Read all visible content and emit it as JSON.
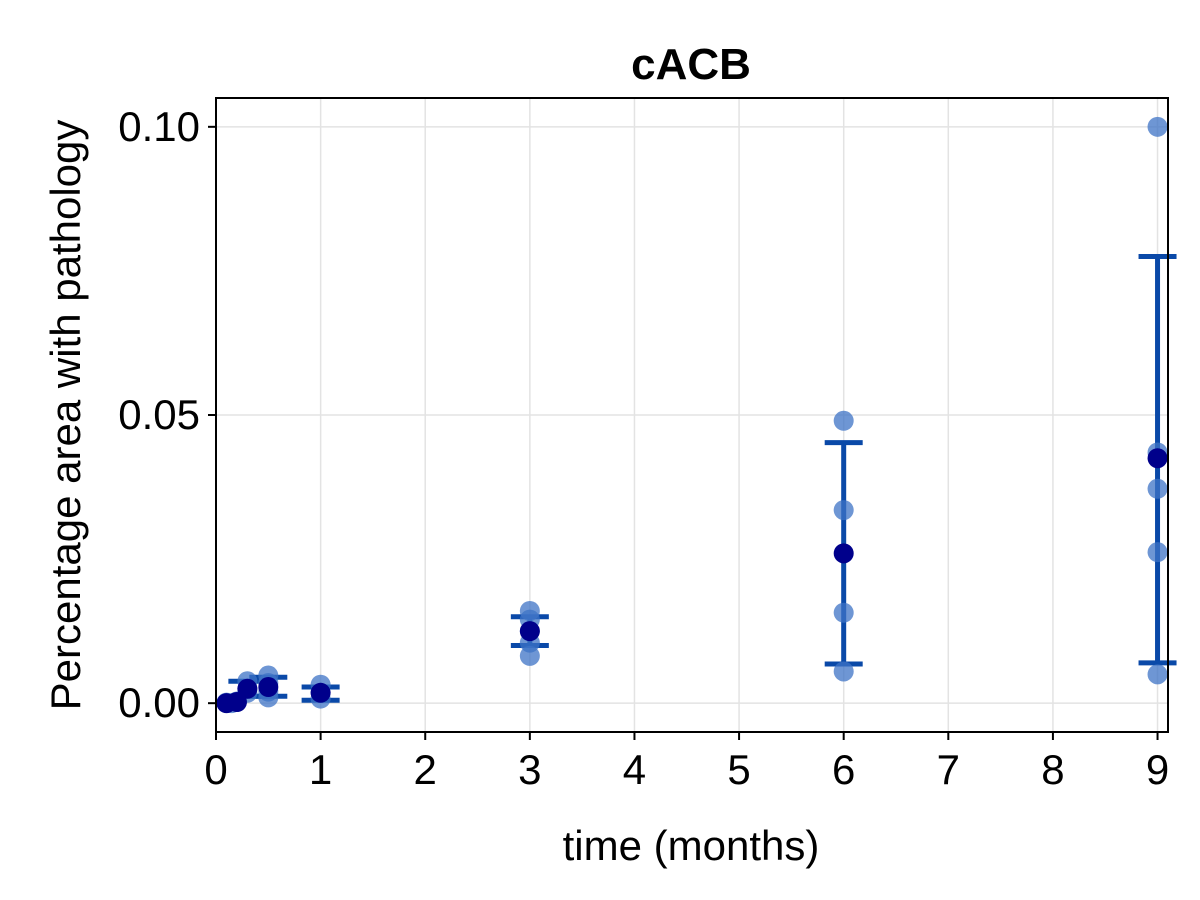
{
  "chart_data": {
    "type": "scatter",
    "title": "cACB",
    "xlabel": "time (months)",
    "ylabel": "Percentage area with pathology",
    "xlim": [
      0,
      9.1
    ],
    "ylim": [
      -0.005,
      0.105
    ],
    "x_ticks": [
      0,
      1,
      2,
      3,
      4,
      5,
      6,
      7,
      8,
      9
    ],
    "x_tick_labels": [
      "0",
      "1",
      "2",
      "3",
      "4",
      "5",
      "6",
      "7",
      "8",
      "9"
    ],
    "y_ticks": [
      0.0,
      0.05,
      0.1
    ],
    "y_tick_labels": [
      "0.00",
      "0.05",
      "0.10"
    ],
    "grid": true,
    "colors": {
      "points": "#3d73c6",
      "error_bars": "#0a49a8",
      "means": "#00008b",
      "grid": "#e3e3e3",
      "axis": "#000000"
    },
    "points": [
      {
        "x": 0.1,
        "y": 0.0
      },
      {
        "x": 0.1,
        "y": 0.0001
      },
      {
        "x": 0.15,
        "y": 0.0
      },
      {
        "x": 0.2,
        "y": 0.0002
      },
      {
        "x": 0.2,
        "y": 0.0003
      },
      {
        "x": 0.3,
        "y": 0.0018
      },
      {
        "x": 0.3,
        "y": 0.0025
      },
      {
        "x": 0.3,
        "y": 0.0038
      },
      {
        "x": 0.5,
        "y": 0.001
      },
      {
        "x": 0.5,
        "y": 0.002
      },
      {
        "x": 0.5,
        "y": 0.0035
      },
      {
        "x": 0.5,
        "y": 0.0048
      },
      {
        "x": 1.0,
        "y": 0.0008
      },
      {
        "x": 1.0,
        "y": 0.0018
      },
      {
        "x": 1.0,
        "y": 0.0032
      },
      {
        "x": 3.0,
        "y": 0.0082
      },
      {
        "x": 3.0,
        "y": 0.0105
      },
      {
        "x": 3.0,
        "y": 0.0125
      },
      {
        "x": 3.0,
        "y": 0.0145
      },
      {
        "x": 3.0,
        "y": 0.016
      },
      {
        "x": 6.0,
        "y": 0.0055
      },
      {
        "x": 6.0,
        "y": 0.0157
      },
      {
        "x": 6.0,
        "y": 0.0335
      },
      {
        "x": 6.0,
        "y": 0.049
      },
      {
        "x": 9.0,
        "y": 0.005
      },
      {
        "x": 9.0,
        "y": 0.0262
      },
      {
        "x": 9.0,
        "y": 0.0372
      },
      {
        "x": 9.0,
        "y": 0.0435
      },
      {
        "x": 9.0,
        "y": 0.1
      }
    ],
    "means": [
      {
        "x": 0.1,
        "y": 0.0
      },
      {
        "x": 0.2,
        "y": 0.0002
      },
      {
        "x": 0.3,
        "y": 0.0025
      },
      {
        "x": 0.5,
        "y": 0.0028
      },
      {
        "x": 1.0,
        "y": 0.0018
      },
      {
        "x": 3.0,
        "y": 0.0125
      },
      {
        "x": 6.0,
        "y": 0.026
      },
      {
        "x": 9.0,
        "y": 0.0425
      }
    ],
    "error_bars": [
      {
        "x": 0.3,
        "low": 0.0012,
        "high": 0.0038
      },
      {
        "x": 0.5,
        "low": 0.0012,
        "high": 0.0045
      },
      {
        "x": 1.0,
        "low": 0.0005,
        "high": 0.0028
      },
      {
        "x": 3.0,
        "low": 0.01,
        "high": 0.015
      },
      {
        "x": 6.0,
        "low": 0.0068,
        "high": 0.0452
      },
      {
        "x": 9.0,
        "low": 0.007,
        "high": 0.0775
      }
    ]
  }
}
